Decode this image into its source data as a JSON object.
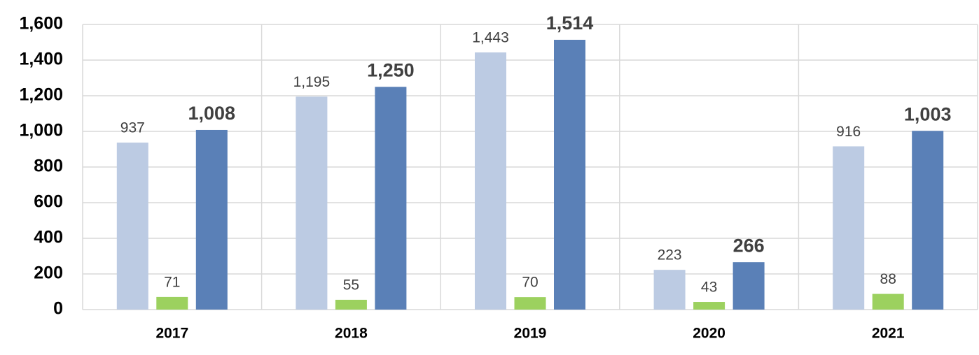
{
  "chart_data": {
    "type": "bar",
    "categories": [
      "2017",
      "2018",
      "2019",
      "2020",
      "2021"
    ],
    "series": [
      {
        "color": "#bccbe3",
        "values": [
          937,
          1195,
          1443,
          223,
          916
        ],
        "value_labels": [
          "937",
          "1,195",
          "1,443",
          "223",
          "916"
        ],
        "label_bold": false
      },
      {
        "color": "#9cd15f",
        "values": [
          71,
          55,
          70,
          43,
          88
        ],
        "label_bold": false
      },
      {
        "color": "#5a80b7",
        "values": [
          1008,
          1250,
          1514,
          266,
          1003
        ],
        "value_labels": [
          "1,008",
          "1,250",
          "1,514",
          "266",
          "1,003"
        ],
        "label_bold": true
      }
    ],
    "ylim": [
      0,
      1600
    ],
    "yticks": [
      0,
      200,
      400,
      600,
      800,
      {
        "value": 1000,
        "label": "1,000"
      },
      {
        "value": 1200,
        "label": "1,200"
      },
      {
        "value": 1400,
        "label": "1,400"
      },
      {
        "value": 1600,
        "label": "1,600"
      }
    ],
    "grid": true
  }
}
